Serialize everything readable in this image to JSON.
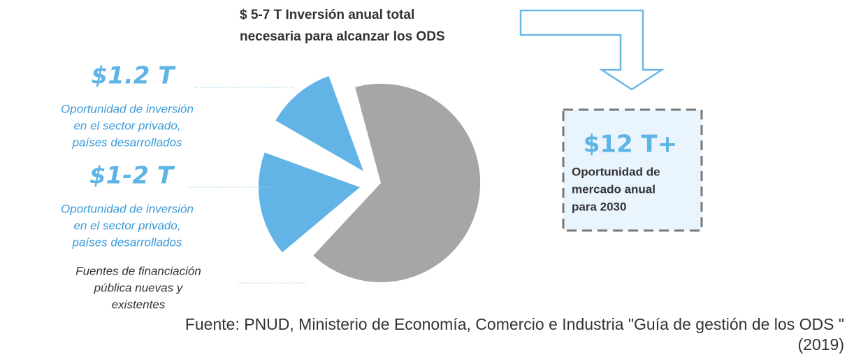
{
  "header": {
    "line1": "$ 5-7 T Inversión anual total",
    "line2": "necesaria para alcanzar los ODS"
  },
  "segments": [
    {
      "amount": "$1.2 T",
      "lines": [
        "Oportunidad de inversión",
        "en el sector privado,",
        "países desarrollados"
      ]
    },
    {
      "amount": "$1-2 T",
      "lines": [
        "Oportunidad de inversión",
        "en el sector privado,",
        "países desarrollados"
      ]
    },
    {
      "lines": [
        "Fuentes de financiación",
        "pública nuevas y",
        "existentes"
      ]
    }
  ],
  "box": {
    "amount": "$12 T+",
    "lines": [
      "Oportunidad de",
      "mercado anual",
      "para 2030"
    ]
  },
  "source": {
    "line1": "Fuente: PNUD, Ministerio de Economía, Comercio e Industria \"Guía de gestión de los ODS \"",
    "line2": "(2019)"
  }
}
